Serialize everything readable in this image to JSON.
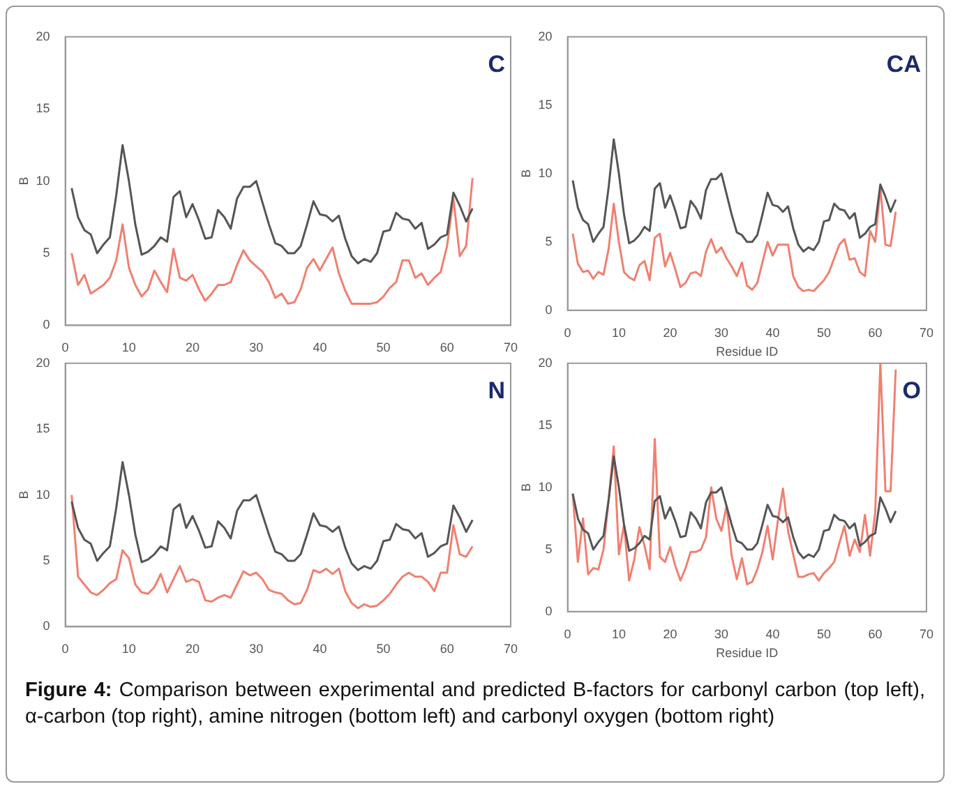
{
  "chart_data": [
    {
      "type": "line",
      "title": "C",
      "ylabel": "B",
      "marker": "none",
      "line_style": "solid",
      "grid": false,
      "legend": false,
      "x": [
        1,
        2,
        3,
        4,
        5,
        6,
        7,
        8,
        9,
        10,
        11,
        12,
        13,
        14,
        15,
        16,
        17,
        18,
        19,
        20,
        21,
        22,
        23,
        24,
        25,
        26,
        27,
        28,
        29,
        30,
        31,
        32,
        33,
        34,
        35,
        36,
        37,
        38,
        39,
        40,
        41,
        42,
        43,
        44,
        45,
        46,
        47,
        48,
        49,
        50,
        51,
        52,
        53,
        54,
        55,
        56,
        57,
        58,
        59,
        60,
        61,
        62,
        63,
        64
      ],
      "xlim": [
        0,
        70
      ],
      "xticks": [
        0,
        10,
        20,
        30,
        40,
        50,
        60,
        70
      ],
      "ylim": [
        0,
        20
      ],
      "yticks": [
        0,
        5,
        10,
        15,
        20
      ],
      "series": [
        {
          "color": "#555555",
          "values": [
            9.5,
            7.5,
            6.6,
            6.3,
            5.0,
            5.6,
            6.1,
            9.0,
            12.5,
            10.0,
            7.0,
            4.9,
            5.1,
            5.5,
            6.1,
            5.8,
            8.9,
            9.3,
            7.5,
            8.4,
            7.3,
            6.0,
            6.1,
            8.0,
            7.5,
            6.7,
            8.8,
            9.6,
            9.6,
            10.0,
            8.5,
            7.0,
            5.7,
            5.5,
            5.0,
            5.0,
            5.5,
            7.0,
            8.6,
            7.7,
            7.6,
            7.2,
            7.6,
            6.0,
            4.8,
            4.3,
            4.6,
            4.4,
            5.0,
            6.5,
            6.6,
            7.8,
            7.4,
            7.3,
            6.7,
            7.1,
            5.3,
            5.6,
            6.1,
            6.3,
            9.2,
            8.3,
            7.2,
            8.1
          ]
        },
        {
          "color": "#f08070",
          "values": [
            5.0,
            2.8,
            3.5,
            2.2,
            2.5,
            2.8,
            3.3,
            4.5,
            7.0,
            4.0,
            2.8,
            2.0,
            2.5,
            3.8,
            3.0,
            2.3,
            5.3,
            3.3,
            3.1,
            3.5,
            2.5,
            1.7,
            2.2,
            2.8,
            2.8,
            3.0,
            4.2,
            5.2,
            4.5,
            4.1,
            3.7,
            3.0,
            1.9,
            2.2,
            1.5,
            1.6,
            2.5,
            4.0,
            4.6,
            3.8,
            4.6,
            5.4,
            3.6,
            2.4,
            1.5,
            1.5,
            1.5,
            1.5,
            1.6,
            2.0,
            2.6,
            3.0,
            4.5,
            4.5,
            3.3,
            3.6,
            2.8,
            3.3,
            3.7,
            5.5,
            8.8,
            4.8,
            5.5,
            10.2
          ]
        }
      ],
      "annotations": [
        "Figure 4: Comparison between experimental and predicted B-factors for carbonyl carbon (top left), α-carbon (top right), amine nitrogen (bottom left) and carbonyl oxygen (bottom right)"
      ]
    },
    {
      "type": "line",
      "title": "CA",
      "xlabel": "Residue ID",
      "ylabel": "B",
      "marker": "none",
      "line_style": "solid",
      "grid": false,
      "legend": false,
      "x": [
        1,
        2,
        3,
        4,
        5,
        6,
        7,
        8,
        9,
        10,
        11,
        12,
        13,
        14,
        15,
        16,
        17,
        18,
        19,
        20,
        21,
        22,
        23,
        24,
        25,
        26,
        27,
        28,
        29,
        30,
        31,
        32,
        33,
        34,
        35,
        36,
        37,
        38,
        39,
        40,
        41,
        42,
        43,
        44,
        45,
        46,
        47,
        48,
        49,
        50,
        51,
        52,
        53,
        54,
        55,
        56,
        57,
        58,
        59,
        60,
        61,
        62,
        63,
        64
      ],
      "xlim": [
        0,
        70
      ],
      "xticks": [
        0,
        10,
        20,
        30,
        40,
        50,
        60,
        70
      ],
      "ylim": [
        0,
        20
      ],
      "yticks": [
        0,
        5,
        10,
        15,
        20
      ],
      "series": [
        {
          "color": "#555555",
          "values": [
            9.5,
            7.5,
            6.6,
            6.3,
            5.0,
            5.6,
            6.1,
            9.0,
            12.5,
            10.0,
            7.0,
            4.9,
            5.1,
            5.5,
            6.1,
            5.8,
            8.9,
            9.3,
            7.5,
            8.4,
            7.3,
            6.0,
            6.1,
            8.0,
            7.5,
            6.7,
            8.8,
            9.6,
            9.6,
            10.0,
            8.5,
            7.0,
            5.7,
            5.5,
            5.0,
            5.0,
            5.5,
            7.0,
            8.6,
            7.7,
            7.6,
            7.2,
            7.6,
            6.0,
            4.8,
            4.3,
            4.6,
            4.4,
            5.0,
            6.5,
            6.6,
            7.8,
            7.4,
            7.3,
            6.7,
            7.1,
            5.3,
            5.6,
            6.1,
            6.3,
            9.2,
            8.3,
            7.2,
            8.1
          ]
        },
        {
          "color": "#f08070",
          "values": [
            5.6,
            3.4,
            2.8,
            2.9,
            2.3,
            2.8,
            2.6,
            4.5,
            7.8,
            5.0,
            2.8,
            2.4,
            2.2,
            3.3,
            3.6,
            2.2,
            5.3,
            5.6,
            3.2,
            4.2,
            3.0,
            1.7,
            2.0,
            2.7,
            2.8,
            2.5,
            4.3,
            5.2,
            4.2,
            4.6,
            3.8,
            3.2,
            2.5,
            3.5,
            1.8,
            1.5,
            2.0,
            3.5,
            5.0,
            4.0,
            4.8,
            4.8,
            4.8,
            2.5,
            1.7,
            1.4,
            1.5,
            1.4,
            1.8,
            2.2,
            2.8,
            3.8,
            4.8,
            5.2,
            3.7,
            3.8,
            2.8,
            2.5,
            5.8,
            5.0,
            9.0,
            4.8,
            4.7,
            7.2
          ]
        }
      ]
    },
    {
      "type": "line",
      "title": "N",
      "ylabel": "B",
      "marker": "none",
      "line_style": "solid",
      "grid": false,
      "legend": false,
      "x": [
        1,
        2,
        3,
        4,
        5,
        6,
        7,
        8,
        9,
        10,
        11,
        12,
        13,
        14,
        15,
        16,
        17,
        18,
        19,
        20,
        21,
        22,
        23,
        24,
        25,
        26,
        27,
        28,
        29,
        30,
        31,
        32,
        33,
        34,
        35,
        36,
        37,
        38,
        39,
        40,
        41,
        42,
        43,
        44,
        45,
        46,
        47,
        48,
        49,
        50,
        51,
        52,
        53,
        54,
        55,
        56,
        57,
        58,
        59,
        60,
        61,
        62,
        63,
        64
      ],
      "xlim": [
        0,
        70
      ],
      "xticks": [
        0,
        10,
        20,
        30,
        40,
        50,
        60,
        70
      ],
      "ylim": [
        0,
        20
      ],
      "yticks": [
        0,
        5,
        10,
        15,
        20
      ],
      "series": [
        {
          "color": "#555555",
          "values": [
            9.5,
            7.5,
            6.6,
            6.3,
            5.0,
            5.6,
            6.1,
            9.0,
            12.5,
            10.0,
            7.0,
            4.9,
            5.1,
            5.5,
            6.1,
            5.8,
            8.9,
            9.3,
            7.5,
            8.4,
            7.3,
            6.0,
            6.1,
            8.0,
            7.5,
            6.7,
            8.8,
            9.6,
            9.6,
            10.0,
            8.5,
            7.0,
            5.7,
            5.5,
            5.0,
            5.0,
            5.5,
            7.0,
            8.6,
            7.7,
            7.6,
            7.2,
            7.6,
            6.0,
            4.8,
            4.3,
            4.6,
            4.4,
            5.0,
            6.5,
            6.6,
            7.8,
            7.4,
            7.3,
            6.7,
            7.1,
            5.3,
            5.6,
            6.1,
            6.3,
            9.2,
            8.3,
            7.2,
            8.1
          ]
        },
        {
          "color": "#f08070",
          "values": [
            10.0,
            3.8,
            3.2,
            2.6,
            2.4,
            2.8,
            3.3,
            3.6,
            5.8,
            5.2,
            3.2,
            2.6,
            2.5,
            3.0,
            4.0,
            2.6,
            3.6,
            4.6,
            3.4,
            3.6,
            3.4,
            2.0,
            1.9,
            2.2,
            2.4,
            2.2,
            3.2,
            4.2,
            3.9,
            4.1,
            3.6,
            2.8,
            2.6,
            2.5,
            2.0,
            1.7,
            1.8,
            2.8,
            4.3,
            4.1,
            4.4,
            4.0,
            4.4,
            2.7,
            1.8,
            1.4,
            1.7,
            1.5,
            1.6,
            2.0,
            2.5,
            3.2,
            3.8,
            4.1,
            3.8,
            3.8,
            3.4,
            2.7,
            4.1,
            4.1,
            7.7,
            5.5,
            5.3,
            6.1
          ]
        }
      ]
    },
    {
      "type": "line",
      "title": "O",
      "xlabel": "Residue ID",
      "ylabel": "B",
      "marker": "none",
      "line_style": "solid",
      "grid": false,
      "legend": false,
      "x": [
        1,
        2,
        3,
        4,
        5,
        6,
        7,
        8,
        9,
        10,
        11,
        12,
        13,
        14,
        15,
        16,
        17,
        18,
        19,
        20,
        21,
        22,
        23,
        24,
        25,
        26,
        27,
        28,
        29,
        30,
        31,
        32,
        33,
        34,
        35,
        36,
        37,
        38,
        39,
        40,
        41,
        42,
        43,
        44,
        45,
        46,
        47,
        48,
        49,
        50,
        51,
        52,
        53,
        54,
        55,
        56,
        57,
        58,
        59,
        60,
        61,
        62,
        63,
        64
      ],
      "xlim": [
        0,
        70
      ],
      "xticks": [
        0,
        10,
        20,
        30,
        40,
        50,
        60,
        70
      ],
      "ylim": [
        0,
        20
      ],
      "yticks": [
        0,
        5,
        10,
        15,
        20
      ],
      "series": [
        {
          "color": "#555555",
          "values": [
            9.5,
            7.5,
            6.6,
            6.3,
            5.0,
            5.6,
            6.1,
            9.0,
            12.5,
            10.0,
            7.0,
            4.9,
            5.1,
            5.5,
            6.1,
            5.8,
            8.9,
            9.3,
            7.5,
            8.4,
            7.3,
            6.0,
            6.1,
            8.0,
            7.5,
            6.7,
            8.8,
            9.6,
            9.6,
            10.0,
            8.5,
            7.0,
            5.7,
            5.5,
            5.0,
            5.0,
            5.5,
            7.0,
            8.6,
            7.7,
            7.6,
            7.2,
            7.6,
            6.0,
            4.8,
            4.3,
            4.6,
            4.4,
            5.0,
            6.5,
            6.6,
            7.8,
            7.4,
            7.3,
            6.7,
            7.1,
            5.3,
            5.6,
            6.1,
            6.3,
            9.2,
            8.3,
            7.2,
            8.1
          ]
        },
        {
          "color": "#f08070",
          "values": [
            9.5,
            4.0,
            7.5,
            3.0,
            3.5,
            3.4,
            5.0,
            9.0,
            13.3,
            4.6,
            7.0,
            2.5,
            4.2,
            6.8,
            5.3,
            3.4,
            13.9,
            4.4,
            4.0,
            5.2,
            3.7,
            2.5,
            3.5,
            4.8,
            4.8,
            5.0,
            6.0,
            10.0,
            7.5,
            6.5,
            8.5,
            4.5,
            2.6,
            4.3,
            2.2,
            2.4,
            3.4,
            4.8,
            6.9,
            4.2,
            7.3,
            9.9,
            6.5,
            4.6,
            2.8,
            2.8,
            3.0,
            3.1,
            2.5,
            3.1,
            3.5,
            4.0,
            5.5,
            6.9,
            4.5,
            5.8,
            4.8,
            7.8,
            4.5,
            8.0,
            20,
            9.7,
            9.7,
            19.5
          ]
        }
      ]
    }
  ]
}
